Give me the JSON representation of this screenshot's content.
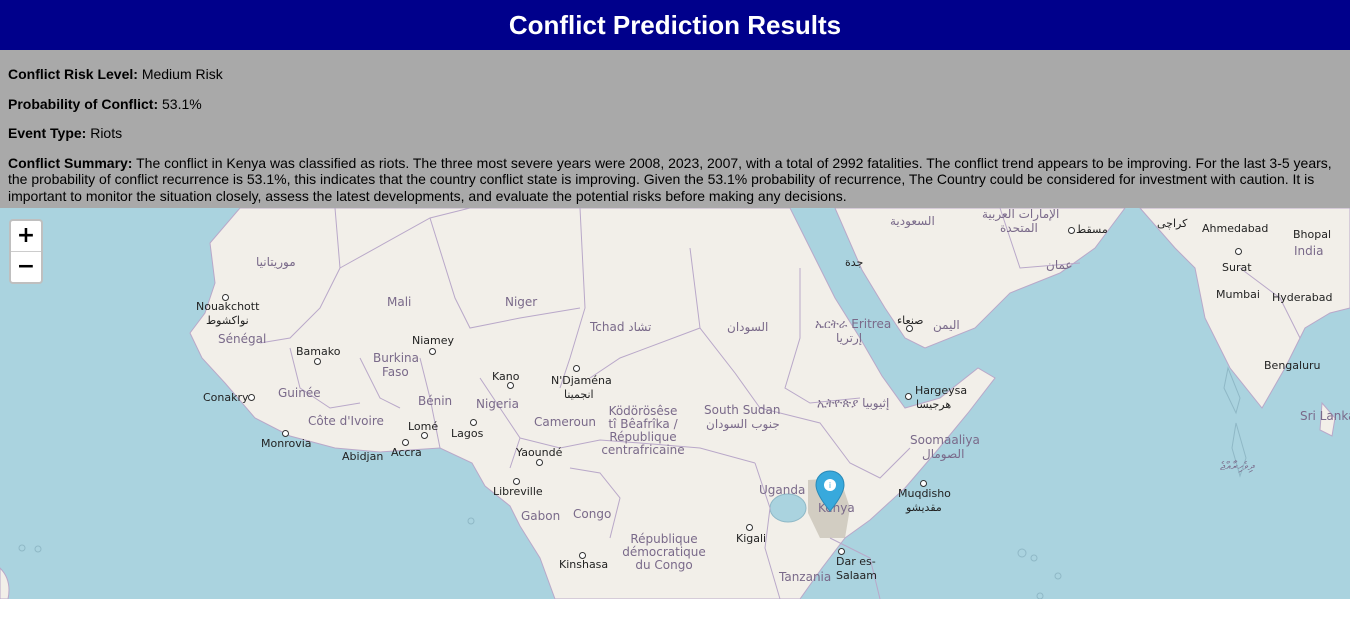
{
  "header": {
    "title": "Conflict Prediction Results"
  },
  "results": {
    "risk_level_label": "Conflict Risk Level:",
    "risk_level_value": "Medium Risk",
    "probability_label": "Probability of Conflict:",
    "probability_value": "53.1%",
    "event_type_label": "Event Type:",
    "event_type_value": "Riots",
    "summary_label": "Conflict Summary:",
    "summary_text": "The conflict in Kenya was classified as riots. The three most severe years were 2008, 2023, 2007, with a total of 2992 fatalities. The conflict trend appears to be improving. For the last 3-5 years, the probability of conflict recurrence is 53.1%, this indicates that the country conflict state is improving. Given the 53.1% probability of recurrence, The Country could be considered for investment with caution. It is important to monitor the situation closely, assess the latest developments, and evaluate the potential risks before making any decisions."
  },
  "map": {
    "zoom_in": "+",
    "zoom_out": "−",
    "marker_label": "Kenya",
    "colors": {
      "water": "#aad3df",
      "land": "#f2efe9",
      "border": "#b9a8c9",
      "marker": "#38a9dc",
      "header": "#00008b",
      "panel": "#a9a9a9"
    },
    "labels": {
      "mauritania": "موريتانيا",
      "nouakchott": "Nouakchott",
      "nouakchott_ar": "نواكشوط",
      "senegal": "Sénégal",
      "mali": "Mali",
      "niger": "Niger",
      "tchad": "Tchad تشاد",
      "sudan": "السودان",
      "eritrea": "ኤርትራ Eritrea",
      "eritrea_ar": "إرتريا",
      "yemen": "اليمن",
      "sanaa": "صنعاء",
      "saudi": "السعودية",
      "jeddah": "جدة",
      "uae": "الإمارات العربية",
      "uae2": "المتحدة",
      "muscat": "مسقط",
      "oman": "عمان",
      "karachi": "كراچی",
      "ahmedabad": "Ahmedabad",
      "bhopal": "Bhopal",
      "india": "India",
      "surat": "Surat",
      "mumbai": "Mumbai",
      "hyderabad": "Hyderabad",
      "bengaluru": "Bengaluru",
      "srilanka": "Sri Lanka",
      "maldives": "ދިވެހިރާއްޖެ",
      "bamako": "Bamako",
      "burkina": "Burkina",
      "faso": "Faso",
      "niamey": "Niamey",
      "kano": "Kano",
      "ndjamena": "N'Djaména",
      "ndjamena_ar": "انجمينا",
      "conakry": "Conakry",
      "guinee": "Guinée",
      "benin": "Bénin",
      "nigeria": "Nigeria",
      "cotedivoire": "Côte d'Ivoire",
      "monrovia": "Monrovia",
      "abidjan": "Abidjan",
      "lome": "Lomé",
      "accra": "Accra",
      "lagos": "Lagos",
      "cameroun": "Cameroun",
      "yaounde": "Yaoundé",
      "car1": "Ködörösêse",
      "car2": "tî Bêafrîka /",
      "car3": "République",
      "car4": "centrafricaine",
      "southsudan": "South Sudan",
      "southsudan_ar": "جنوب السودان",
      "ethiopia": "ኢትዮጵያ إثيوبيا",
      "hargeysa": "Hargeysa",
      "hargeysa_ar": "هرجيسا",
      "somalia": "Soomaaliya",
      "somalia_ar": "الصومال",
      "muqdisho": "Muqdisho",
      "muqdisho_ar": "مقديشو",
      "libreville": "Libreville",
      "gabon": "Gabon",
      "congo": "Congo",
      "uganda": "Uganda",
      "kenya": "Kenya",
      "kigali": "Kigali",
      "kinshasa": "Kinshasa",
      "rdc1": "République",
      "rdc2": "démocratique",
      "rdc3": "du Congo",
      "daressalaam1": "Dar es-",
      "daressalaam2": "Salaam",
      "tanzania": "Tanzania"
    }
  }
}
